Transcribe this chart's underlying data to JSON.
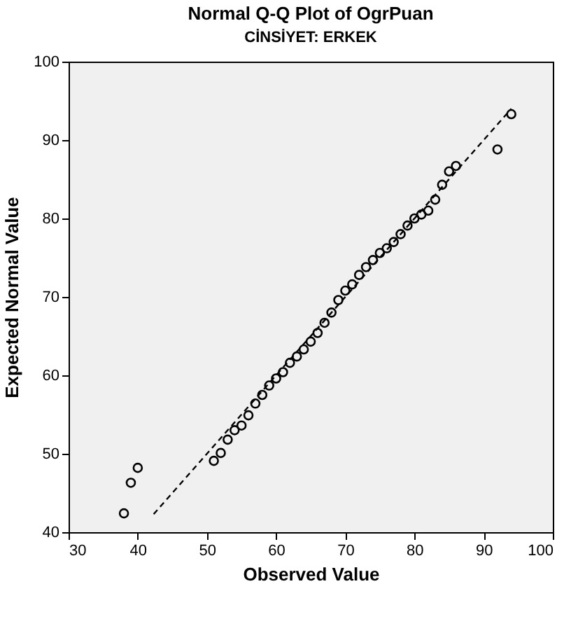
{
  "chart_data": {
    "type": "scatter",
    "title": "Normal Q-Q Plot of OgrPuan",
    "subtitle": "CİNSİYET: ERKEK",
    "xlabel": "Observed Value",
    "ylabel": "Expected Normal Value",
    "xlim": [
      30,
      100
    ],
    "ylim": [
      40,
      100
    ],
    "xticks": [
      30,
      40,
      50,
      60,
      70,
      80,
      90,
      100
    ],
    "yticks": [
      40,
      50,
      60,
      70,
      80,
      90,
      100
    ],
    "grid": false,
    "series": [
      {
        "marker": "circle",
        "color": "#000000",
        "x": [
          38,
          39,
          40,
          51,
          52,
          53,
          54,
          55,
          56,
          57,
          58,
          59,
          60,
          61,
          62,
          63,
          64,
          65,
          66,
          67,
          68,
          69,
          70,
          71,
          72,
          73,
          74,
          75,
          76,
          77,
          78,
          79,
          80,
          81,
          82,
          83,
          84,
          85,
          86,
          92,
          94
        ],
        "values": [
          42.4,
          46.3,
          48.2,
          49.1,
          50.1,
          51.8,
          53.0,
          53.6,
          54.9,
          56.4,
          57.5,
          58.7,
          59.6,
          60.4,
          61.6,
          62.4,
          63.3,
          64.3,
          65.4,
          66.7,
          68.0,
          69.6,
          70.8,
          71.6,
          72.8,
          73.8,
          74.7,
          75.6,
          76.2,
          77.0,
          78.0,
          79.1,
          80.0,
          80.5,
          81.0,
          82.4,
          84.3,
          86.0,
          86.7,
          88.8,
          93.3
        ]
      },
      {
        "type": "line",
        "color": "#000000",
        "line_style": "dashed",
        "x": [
          42.3,
          94
        ],
        "values": [
          42.3,
          94
        ]
      }
    ]
  }
}
